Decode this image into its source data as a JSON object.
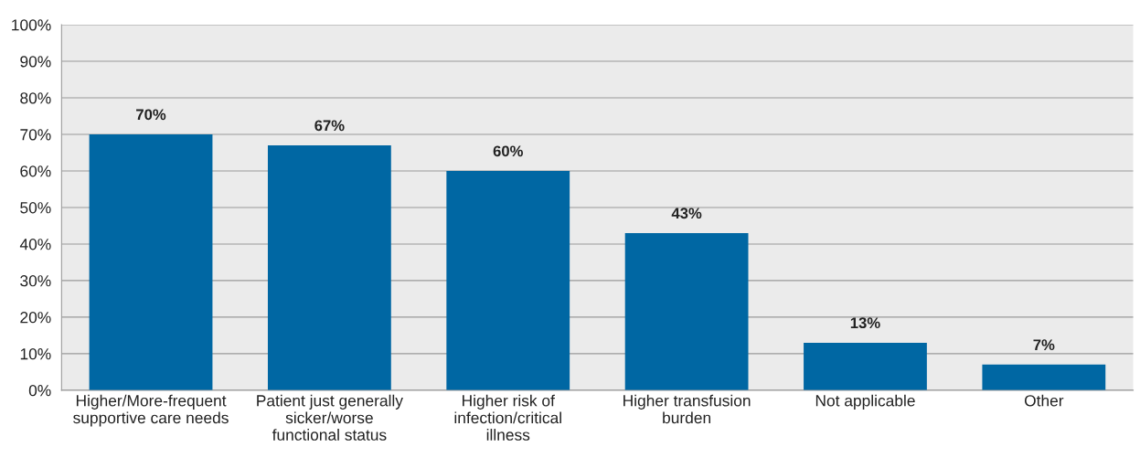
{
  "chart_data": {
    "type": "bar",
    "categories": [
      "Higher/More-frequent\nsupportive care needs",
      "Patient just generally\nsicker/worse\nfunctional status",
      "Higher risk of\ninfection/critical\nillness",
      "Higher transfusion\nburden",
      "Not applicable",
      "Other"
    ],
    "values": [
      70,
      67,
      60,
      43,
      13,
      7
    ],
    "color": "#0067a3",
    "value_labels": [
      "70%",
      "67%",
      "60%",
      "43%",
      "13%",
      "7%"
    ],
    "ylim": [
      0,
      100
    ],
    "yticks": [
      {
        "value": 0,
        "label": "0%"
      },
      {
        "value": 10,
        "label": "10%"
      },
      {
        "value": 20,
        "label": "20%"
      },
      {
        "value": 30,
        "label": "30%"
      },
      {
        "value": 40,
        "label": "40%"
      },
      {
        "value": 50,
        "label": "50%"
      },
      {
        "value": 60,
        "label": "60%"
      },
      {
        "value": 70,
        "label": "70%"
      },
      {
        "value": 80,
        "label": "80%"
      },
      {
        "value": 90,
        "label": "90%"
      },
      {
        "value": 100,
        "label": "100%"
      }
    ],
    "grid": "y",
    "legend": false
  }
}
